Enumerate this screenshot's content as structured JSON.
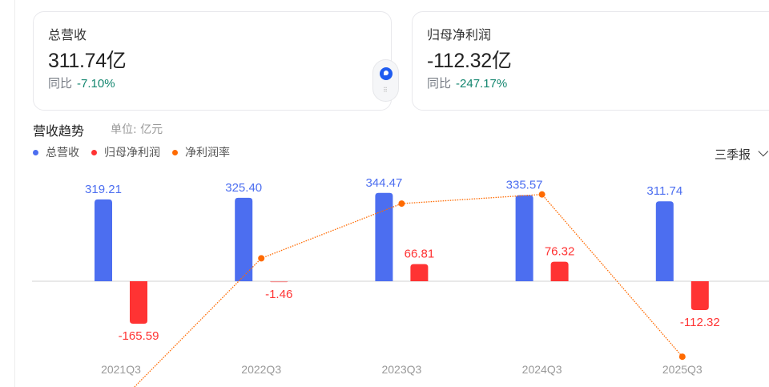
{
  "cards": [
    {
      "label": "总营收",
      "value": "311.74亿",
      "yoy_label": "同比",
      "yoy_value": "-7.10%"
    },
    {
      "label": "归母净利润",
      "value": "-112.32亿",
      "yoy_label": "同比",
      "yoy_value": "-247.17%"
    }
  ],
  "section": {
    "title": "营收趋势",
    "unit": "单位: 亿元"
  },
  "legend": [
    {
      "label": "总营收",
      "color": "#4c6ef0"
    },
    {
      "label": "归母净利润",
      "color": "#ff3333"
    },
    {
      "label": "净利润率",
      "color": "#ff6a00"
    }
  ],
  "period_select": {
    "value": "三季报"
  },
  "colors": {
    "revenue": "#4c6ef0",
    "profit": "#ff3333",
    "margin": "#ff6a00",
    "yoy_text": "#13866f"
  },
  "chart_data": {
    "type": "bar",
    "title": "营收趋势",
    "subtitle": "单位: 亿元",
    "categories": [
      "2021Q3",
      "2022Q3",
      "2023Q3",
      "2024Q3",
      "2025Q3"
    ],
    "series": [
      {
        "name": "总营收",
        "type": "bar",
        "values": [
          319.21,
          325.4,
          344.47,
          335.57,
          311.74
        ],
        "labels": [
          "319.21",
          "325.40",
          "344.47",
          "335.57",
          "311.74"
        ]
      },
      {
        "name": "归母净利润",
        "type": "bar",
        "values": [
          -165.59,
          -1.46,
          66.81,
          76.32,
          -112.32
        ],
        "labels": [
          "-165.59",
          "-1.46",
          "66.81",
          "76.32",
          "-112.32"
        ]
      },
      {
        "name": "净利润率",
        "type": "line",
        "values": [
          -51.9,
          -0.4,
          19.4,
          22.7,
          -36.0
        ],
        "note": "approximate, no axis shown; dotted line"
      }
    ],
    "xlabel": "",
    "ylabel": "",
    "grid": false,
    "legend_position": "top-left"
  }
}
